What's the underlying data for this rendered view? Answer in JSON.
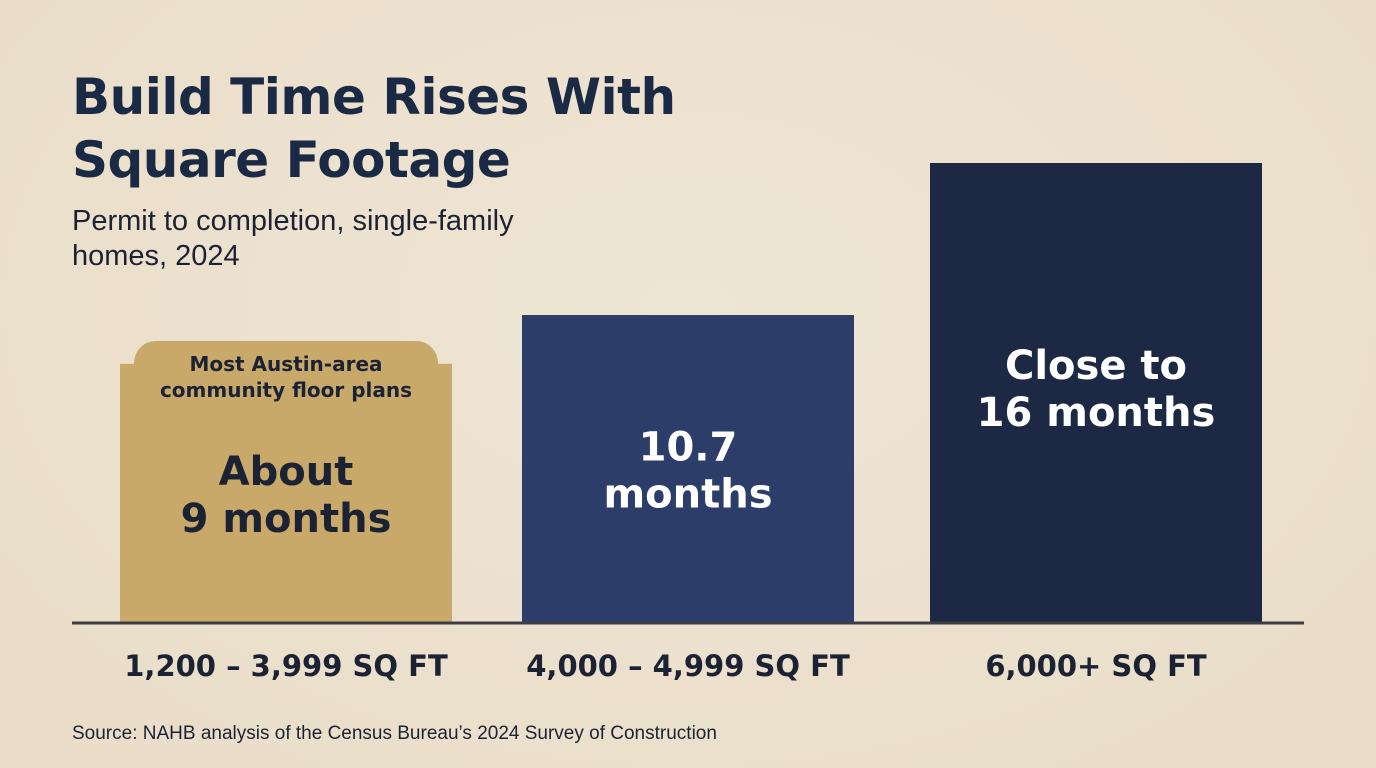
{
  "title": "Build Time Rises With Square Footage",
  "subtitle": "Permit to completion, single-family homes, 2024",
  "callout": "Most Austin-area community floor plans",
  "source": "Source: NAHB analysis of the Census Bureau’s 2024 Survey of Construction",
  "chart_data": {
    "type": "bar",
    "title": "Build Time Rises With Square Footage",
    "subtitle": "Permit to completion, single-family homes, 2024",
    "categories": [
      "1,200 – 3,999 SQ FT",
      "4,000 – 4,999 SQ FT",
      "6,000+ SQ FT"
    ],
    "values": [
      9,
      10.7,
      16
    ],
    "data_labels": [
      [
        "About",
        "9 months"
      ],
      [
        "10.7",
        "months"
      ],
      [
        "Close to",
        "16 months"
      ]
    ],
    "ylim": [
      0,
      16
    ],
    "grid": false,
    "legend": "none",
    "colors": [
      "#c9a96a",
      "#2b3d68",
      "#1c2844"
    ],
    "label_colors": [
      "#1b2233",
      "#ffffff",
      "#ffffff"
    ]
  }
}
